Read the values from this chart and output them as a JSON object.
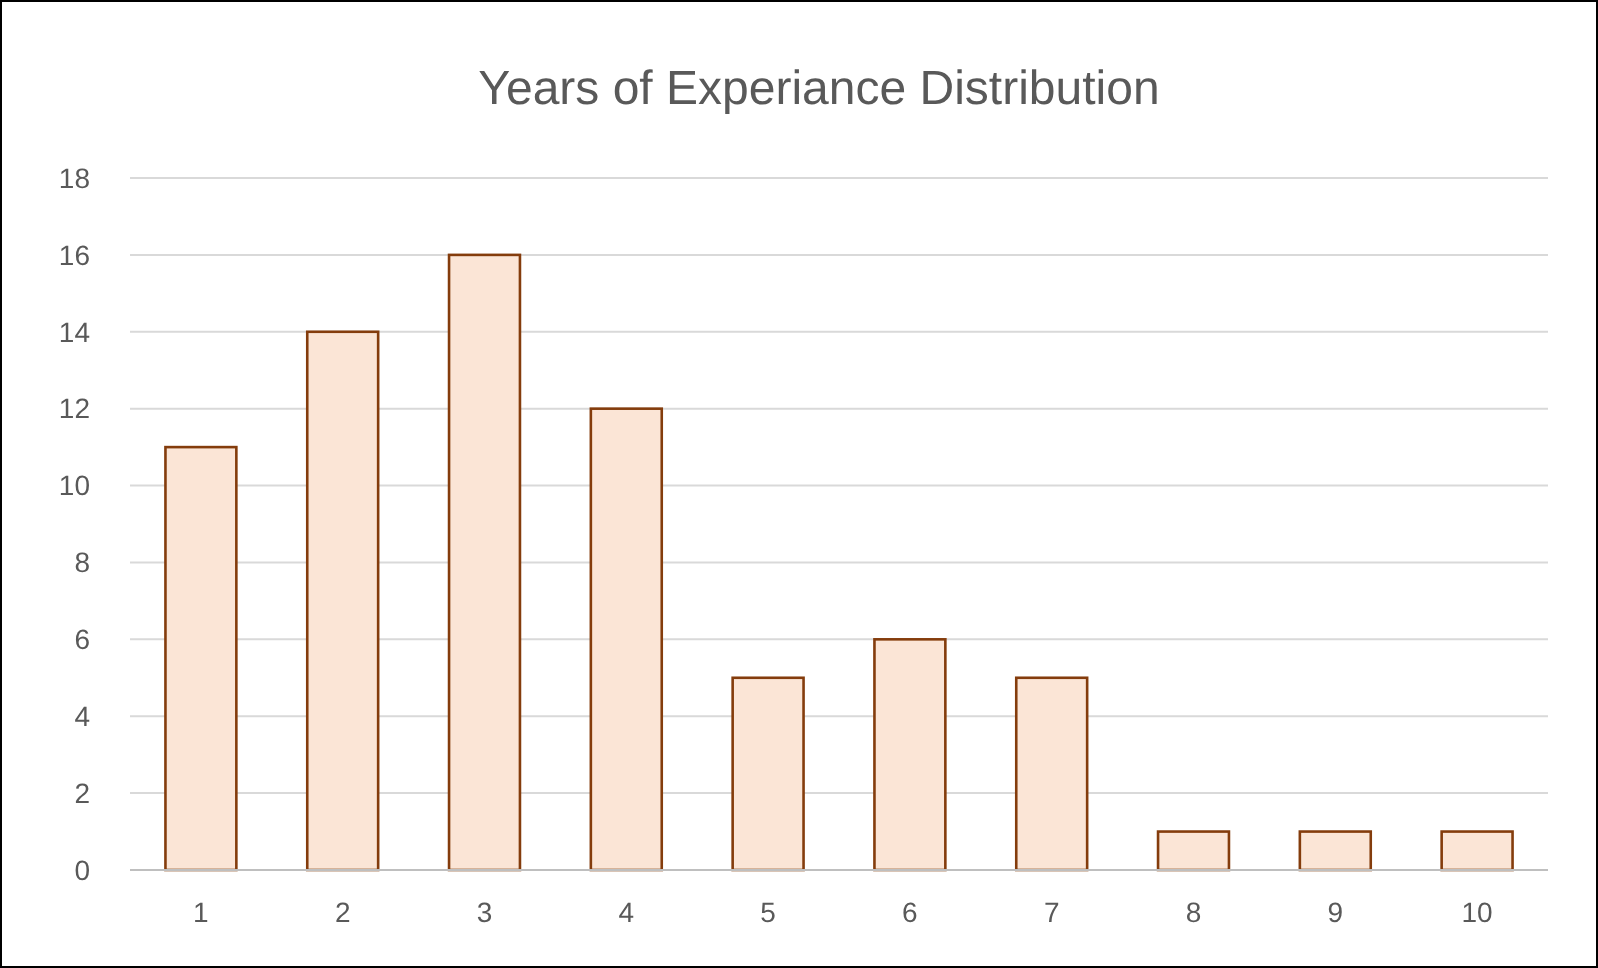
{
  "chart_data": {
    "type": "bar",
    "title": "Years of Experiance Distribution",
    "categories": [
      "1",
      "2",
      "3",
      "4",
      "5",
      "6",
      "7",
      "8",
      "9",
      "10"
    ],
    "values": [
      11,
      14,
      16,
      12,
      5,
      6,
      5,
      1,
      1,
      1
    ],
    "color": "#fbe5d6",
    "ylim": [
      0,
      18
    ],
    "yticks": [
      0,
      2,
      4,
      6,
      8,
      10,
      12,
      14,
      16,
      18
    ],
    "grid": "y"
  }
}
